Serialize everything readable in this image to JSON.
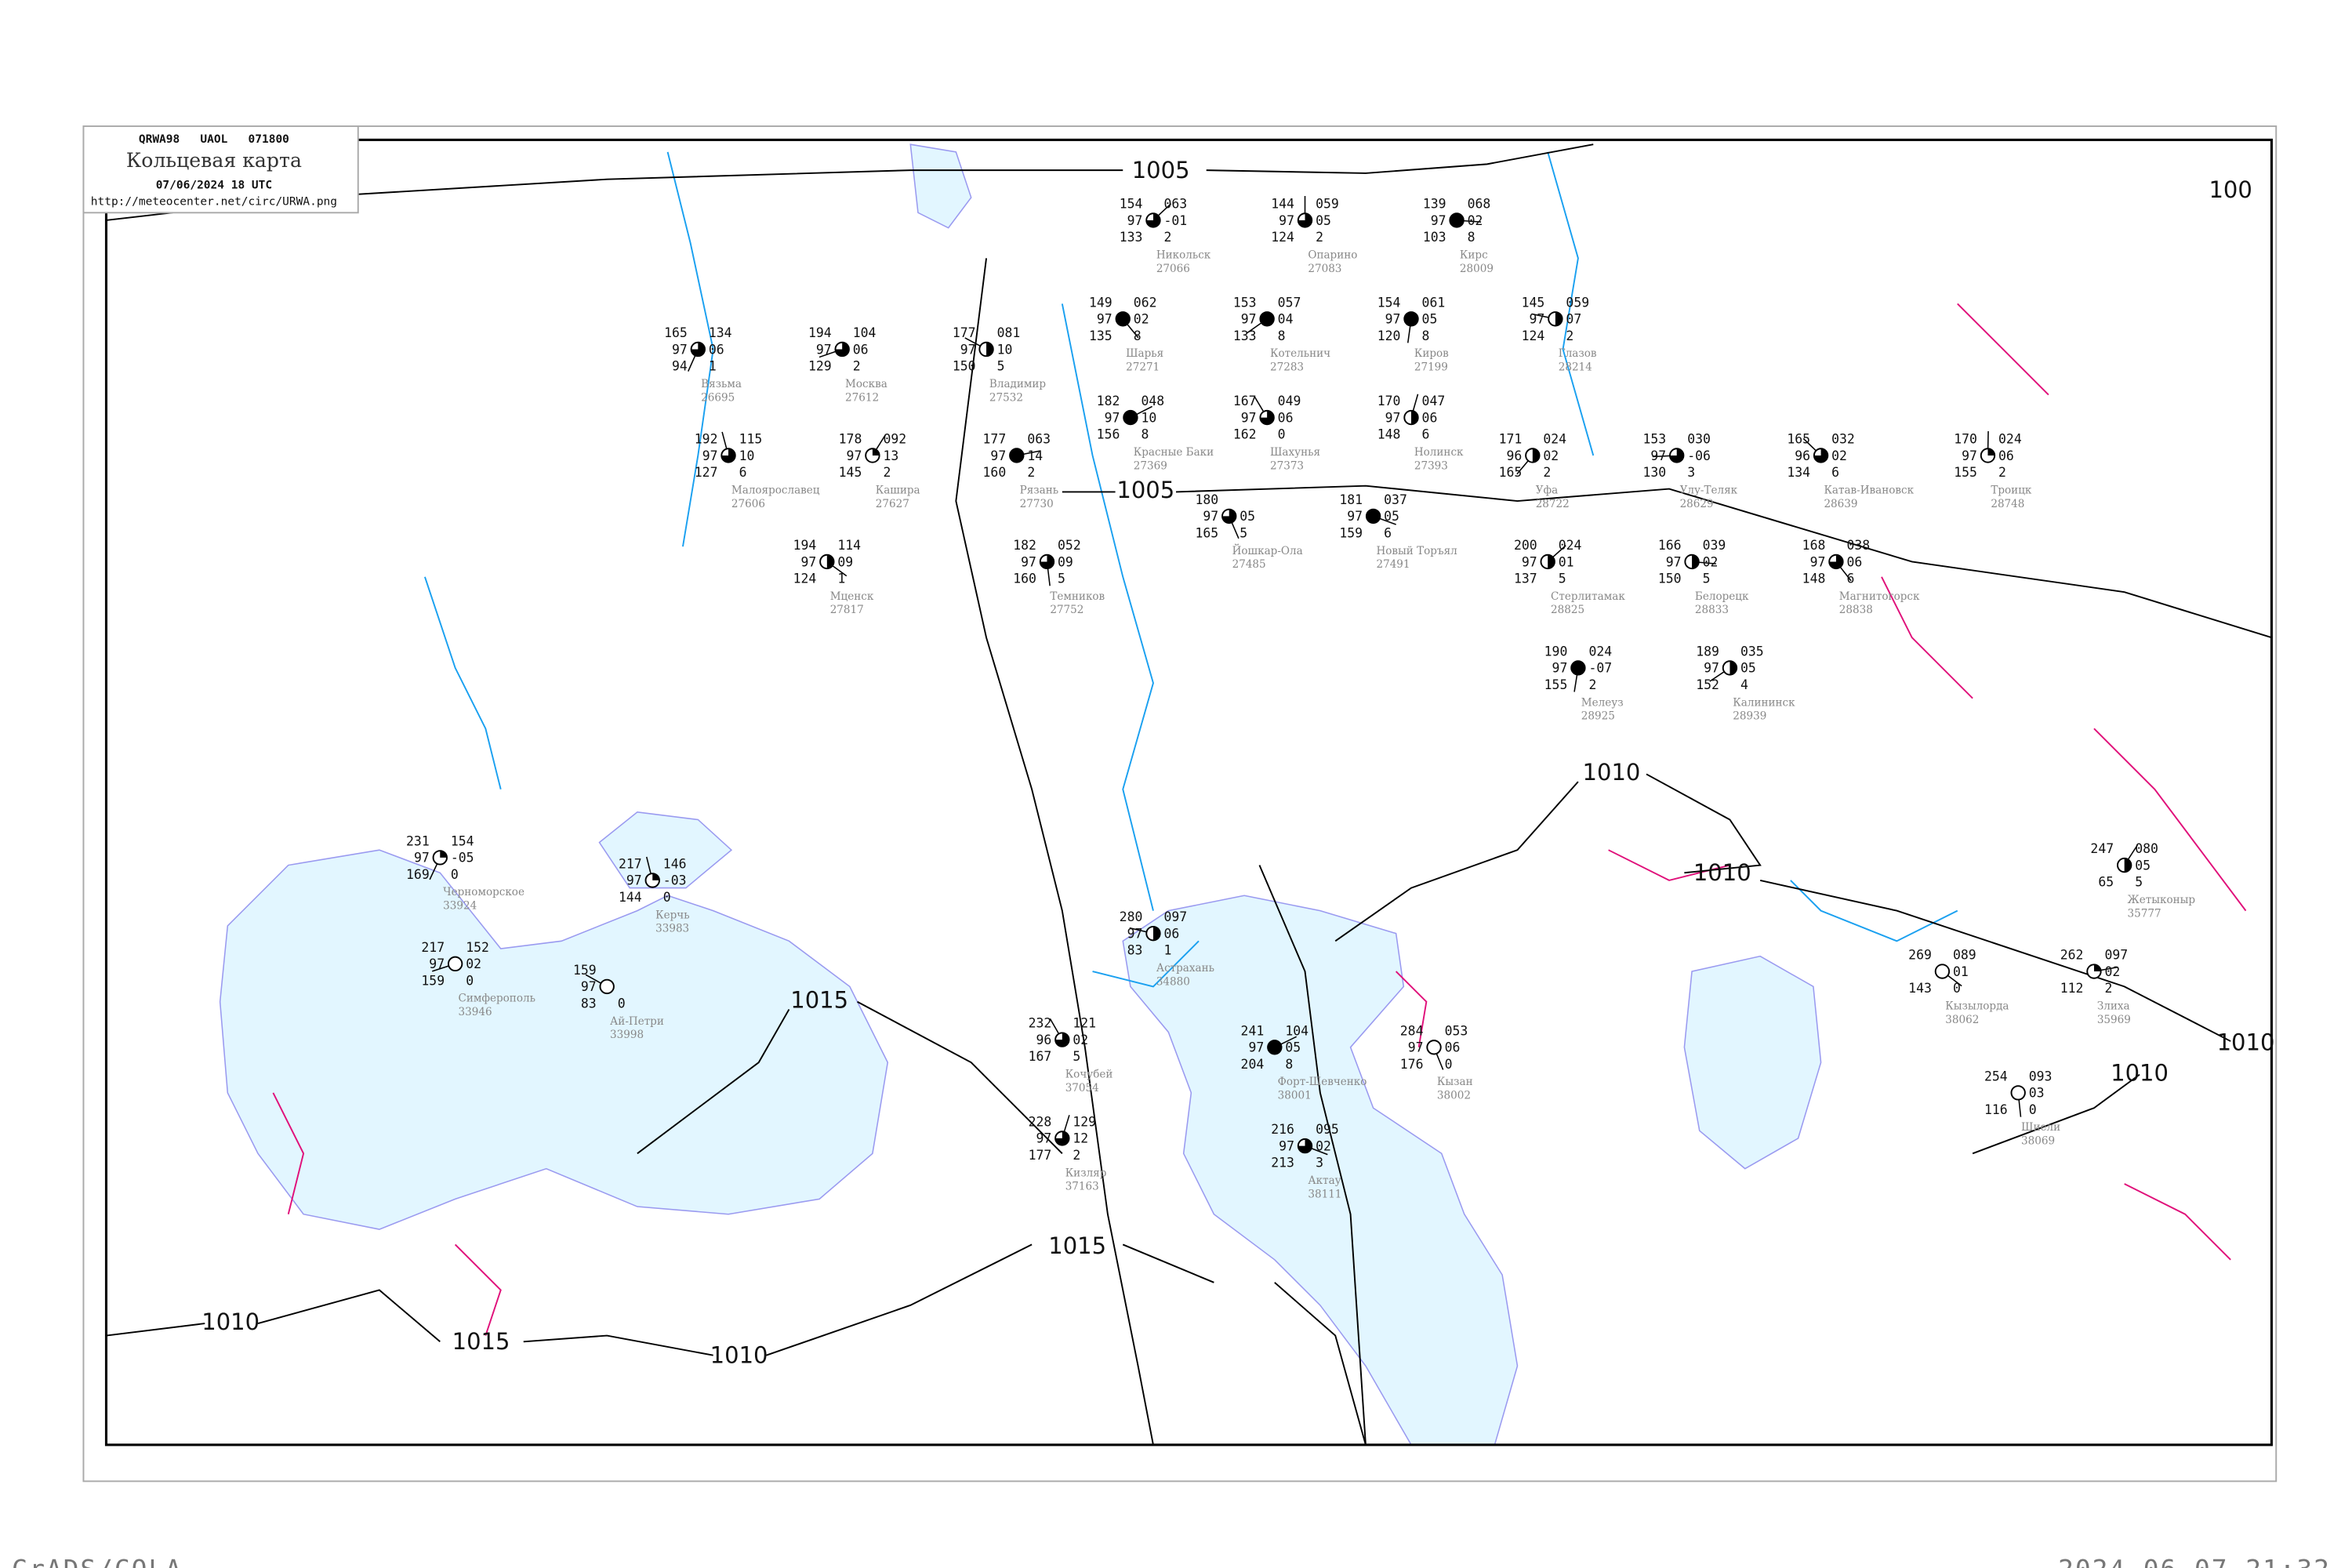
{
  "header": {
    "code_line": "QRWA98   UAOL   071800",
    "title": "Кольцевая карта",
    "datetime": "07/06/2024 18 UTC",
    "url": "http://meteocenter.net/circ/URWA.png"
  },
  "footer": {
    "left": "GrADS/COLA",
    "right": "2024-06-07-21:32"
  },
  "colors": {
    "sea": "#e2f6ff",
    "coast": "#9a9af0",
    "river": "#1aa0f0",
    "isobar": "#000000",
    "front": "#e0107a",
    "station_label": "#888888",
    "precip_red": "#ee3366",
    "precip_green": "#22bb44"
  },
  "isobars": [
    {
      "label": "1005"
    },
    {
      "label": "1005"
    },
    {
      "label": "1010"
    },
    {
      "label": "1010"
    },
    {
      "label": "1010"
    },
    {
      "label": "1010"
    },
    {
      "label": "1015"
    },
    {
      "label": "1015"
    },
    {
      "label": "1015"
    },
    {
      "label": "1010"
    },
    {
      "label": "1010"
    },
    {
      "label": "100"
    }
  ],
  "stations": [
    {
      "name": "Опарино",
      "index": "27083",
      "tl": "144",
      "ml": "97",
      "bl": "124",
      "tr": "059",
      "mr": "05",
      "br": "2",
      "cover": 0.75
    },
    {
      "name": "Никольск",
      "index": "27066",
      "tl": "154",
      "ml": "97",
      "bl": "133",
      "tr": "063",
      "mr": "-01",
      "br": "2",
      "cover": 0.75
    },
    {
      "name": "Кирс",
      "index": "28009",
      "tl": "139",
      "ml": "97",
      "bl": "103",
      "tr": "068",
      "mr": "02",
      "br": "8",
      "cover": 1
    },
    {
      "name": "Шарья",
      "index": "27271",
      "tl": "149",
      "ml": "97",
      "bl": "135",
      "tr": "062",
      "mr": "02",
      "br": "8",
      "cover": 1
    },
    {
      "name": "Киров",
      "index": "27199",
      "tl": "154",
      "ml": "97",
      "bl": "120",
      "tr": "061",
      "mr": "05",
      "br": "8",
      "cover": 1
    },
    {
      "name": "Котельнич",
      "index": "27283",
      "tl": "153",
      "ml": "97",
      "bl": "133",
      "tr": "057",
      "mr": "04",
      "br": "8",
      "cover": 1
    },
    {
      "name": "Глазов",
      "index": "28214",
      "tl": "145",
      "ml": "97",
      "bl": "124",
      "tr": "059",
      "mr": "07",
      "br": "2",
      "cover": 0.5
    },
    {
      "name": "Шахунья",
      "index": "27373",
      "tl": "167",
      "ml": "97",
      "bl": "162",
      "tr": "049",
      "mr": "06",
      "br": "0",
      "cover": 0.75
    },
    {
      "name": "Нолинск",
      "index": "27393",
      "tl": "170",
      "ml": "97",
      "bl": "148",
      "tr": "047",
      "mr": "06",
      "br": "6",
      "cover": 0.5
    },
    {
      "name": "Красные Баки",
      "index": "27369",
      "tl": "182",
      "ml": "97",
      "bl": "156",
      "tr": "048",
      "mr": "10",
      "br": "8",
      "cover": 1
    },
    {
      "name": "Новый Торъял",
      "index": "27491",
      "tl": "181",
      "ml": "97",
      "bl": "159",
      "tr": "037",
      "mr": "05",
      "br": "6",
      "cover": 1
    },
    {
      "name": "Йошкар-Ола",
      "index": "27485",
      "tl": "180",
      "ml": "97",
      "bl": "165",
      "tr": "",
      "mr": "05",
      "br": "5",
      "cover": 0.75
    },
    {
      "name": "Вязьма",
      "index": "26695",
      "tl": "165",
      "ml": "97",
      "bl": "94",
      "tr": "134",
      "mr": "06",
      "br": "1",
      "cover": 0.75
    },
    {
      "name": "Москва",
      "index": "27612",
      "tl": "194",
      "ml": "97",
      "bl": "129",
      "tr": "104",
      "mr": "06",
      "br": "2",
      "cover": 0.75
    },
    {
      "name": "Владимир",
      "index": "27532",
      "tl": "177",
      "ml": "97",
      "bl": "150",
      "tr": "081",
      "mr": "10",
      "br": "5",
      "cover": 0.5
    },
    {
      "name": "Малоярославец",
      "index": "27606",
      "tl": "192",
      "ml": "97",
      "bl": "127",
      "tr": "115",
      "mr": "10",
      "br": "6",
      "cover": 0.75
    },
    {
      "name": "Кашира",
      "index": "27627",
      "tl": "178",
      "ml": "97",
      "bl": "145",
      "tr": "092",
      "mr": "13",
      "br": "2",
      "cover": 0.25
    },
    {
      "name": "Рязань",
      "index": "27730",
      "tl": "177",
      "ml": "97",
      "bl": "160",
      "tr": "063",
      "mr": "14",
      "br": "2",
      "cover": 1
    },
    {
      "name": "Мценск",
      "index": "27817",
      "tl": "194",
      "ml": "97",
      "bl": "124",
      "tr": "114",
      "mr": "09",
      "br": "1",
      "cover": 0.5
    },
    {
      "name": "Темников",
      "index": "27752",
      "tl": "182",
      "ml": "97",
      "bl": "160",
      "tr": "052",
      "mr": "09",
      "br": "5",
      "cover": 0.75
    },
    {
      "name": "Уфа",
      "index": "28722",
      "tl": "171",
      "ml": "96",
      "bl": "165",
      "tr": "024",
      "mr": "02",
      "br": "2",
      "cover": 0.5
    },
    {
      "name": "Улу-Теляк",
      "index": "28629",
      "tl": "153",
      "ml": "97",
      "bl": "130",
      "tr": "030",
      "mr": "-06",
      "br": "3",
      "cover": 0.75
    },
    {
      "name": "Катав-Ивановск",
      "index": "28639",
      "tl": "165",
      "ml": "96",
      "bl": "134",
      "tr": "032",
      "mr": "02",
      "br": "6",
      "cover": 0.75
    },
    {
      "name": "Троицк",
      "index": "28748",
      "tl": "170",
      "ml": "97",
      "bl": "155",
      "tr": "024",
      "mr": "06",
      "br": "2",
      "cover": 0.25
    },
    {
      "name": "Стерлитамак",
      "index": "28825",
      "tl": "200",
      "ml": "97",
      "bl": "137",
      "tr": "024",
      "mr": "01",
      "br": "5",
      "cover": 0.5
    },
    {
      "name": "Белорецк",
      "index": "28833",
      "tl": "166",
      "ml": "97",
      "bl": "150",
      "tr": "039",
      "mr": "02",
      "br": "5",
      "cover": 0.5
    },
    {
      "name": "Магнитогорск",
      "index": "28838",
      "tl": "168",
      "ml": "97",
      "bl": "148",
      "tr": "038",
      "mr": "06",
      "br": "6",
      "cover": 0.75
    },
    {
      "name": "Мелеуз",
      "index": "28925",
      "tl": "190",
      "ml": "97",
      "bl": "155",
      "tr": "024",
      "mr": "-07",
      "br": "2",
      "cover": 1
    },
    {
      "name": "Калининск",
      "index": "28939",
      "tl": "189",
      "ml": "97",
      "bl": "152",
      "tr": "035",
      "mr": "05",
      "br": "4",
      "cover": 0.5
    },
    {
      "name": "Астрахань",
      "index": "34880",
      "tl": "280",
      "ml": "97",
      "bl": "83",
      "tr": "097",
      "mr": "06",
      "br": "1",
      "cover": 0.5
    },
    {
      "name": "Кочубей",
      "index": "37054",
      "tl": "232",
      "ml": "96",
      "bl": "167",
      "tr": "121",
      "mr": "02",
      "br": "5",
      "cover": 0.75
    },
    {
      "name": "Кизляр",
      "index": "37163",
      "tl": "228",
      "ml": "97",
      "bl": "177",
      "tr": "129",
      "mr": "12",
      "br": "2",
      "cover": 0.75
    },
    {
      "name": "Форт-Шевченко",
      "index": "38001",
      "tl": "241",
      "ml": "97",
      "bl": "204",
      "tr": "104",
      "mr": "05",
      "br": "8",
      "cover": 1
    },
    {
      "name": "Актау",
      "index": "38111",
      "tl": "216",
      "ml": "97",
      "bl": "213",
      "tr": "095",
      "mr": "02",
      "br": "3",
      "cover": 0.75
    },
    {
      "name": "Кызан",
      "index": "38002",
      "tl": "284",
      "ml": "97",
      "bl": "176",
      "tr": "053",
      "mr": "06",
      "br": "0",
      "cover": 0
    },
    {
      "name": "Черноморское",
      "index": "33924",
      "tl": "231",
      "ml": "97",
      "bl": "169",
      "tr": "154",
      "mr": "-05",
      "br": "0",
      "cover": 0.25
    },
    {
      "name": "Симферополь",
      "index": "33946",
      "tl": "217",
      "ml": "97",
      "bl": "159",
      "tr": "152",
      "mr": "02",
      "br": "0",
      "cover": 0
    },
    {
      "name": "Ай-Петри",
      "index": "33998",
      "tl": "159",
      "ml": "97",
      "bl": "83",
      "tr": "",
      "mr": "",
      "br": "0",
      "cover": 0
    },
    {
      "name": "Керчь",
      "index": "33983",
      "tl": "217",
      "ml": "97",
      "bl": "144",
      "tr": "146",
      "mr": "-03",
      "br": "0",
      "cover": 0.25
    },
    {
      "name": "Жетыконыр",
      "index": "35777",
      "tl": "247",
      "ml": "",
      "bl": "65",
      "tr": "080",
      "mr": "05",
      "br": "5",
      "cover": 0.5
    },
    {
      "name": "Злиха",
      "index": "35969",
      "tl": "262",
      "ml": "",
      "bl": "112",
      "tr": "097",
      "mr": "02",
      "br": "2",
      "cover": 0.25
    },
    {
      "name": "Кызылорда",
      "index": "38062",
      "tl": "269",
      "ml": "",
      "bl": "143",
      "tr": "089",
      "mr": "01",
      "br": "0",
      "cover": 0
    },
    {
      "name": "Шиели",
      "index": "38069",
      "tl": "254",
      "ml": "",
      "bl": "116",
      "tr": "093",
      "mr": "03",
      "br": "0",
      "cover": 0
    }
  ]
}
